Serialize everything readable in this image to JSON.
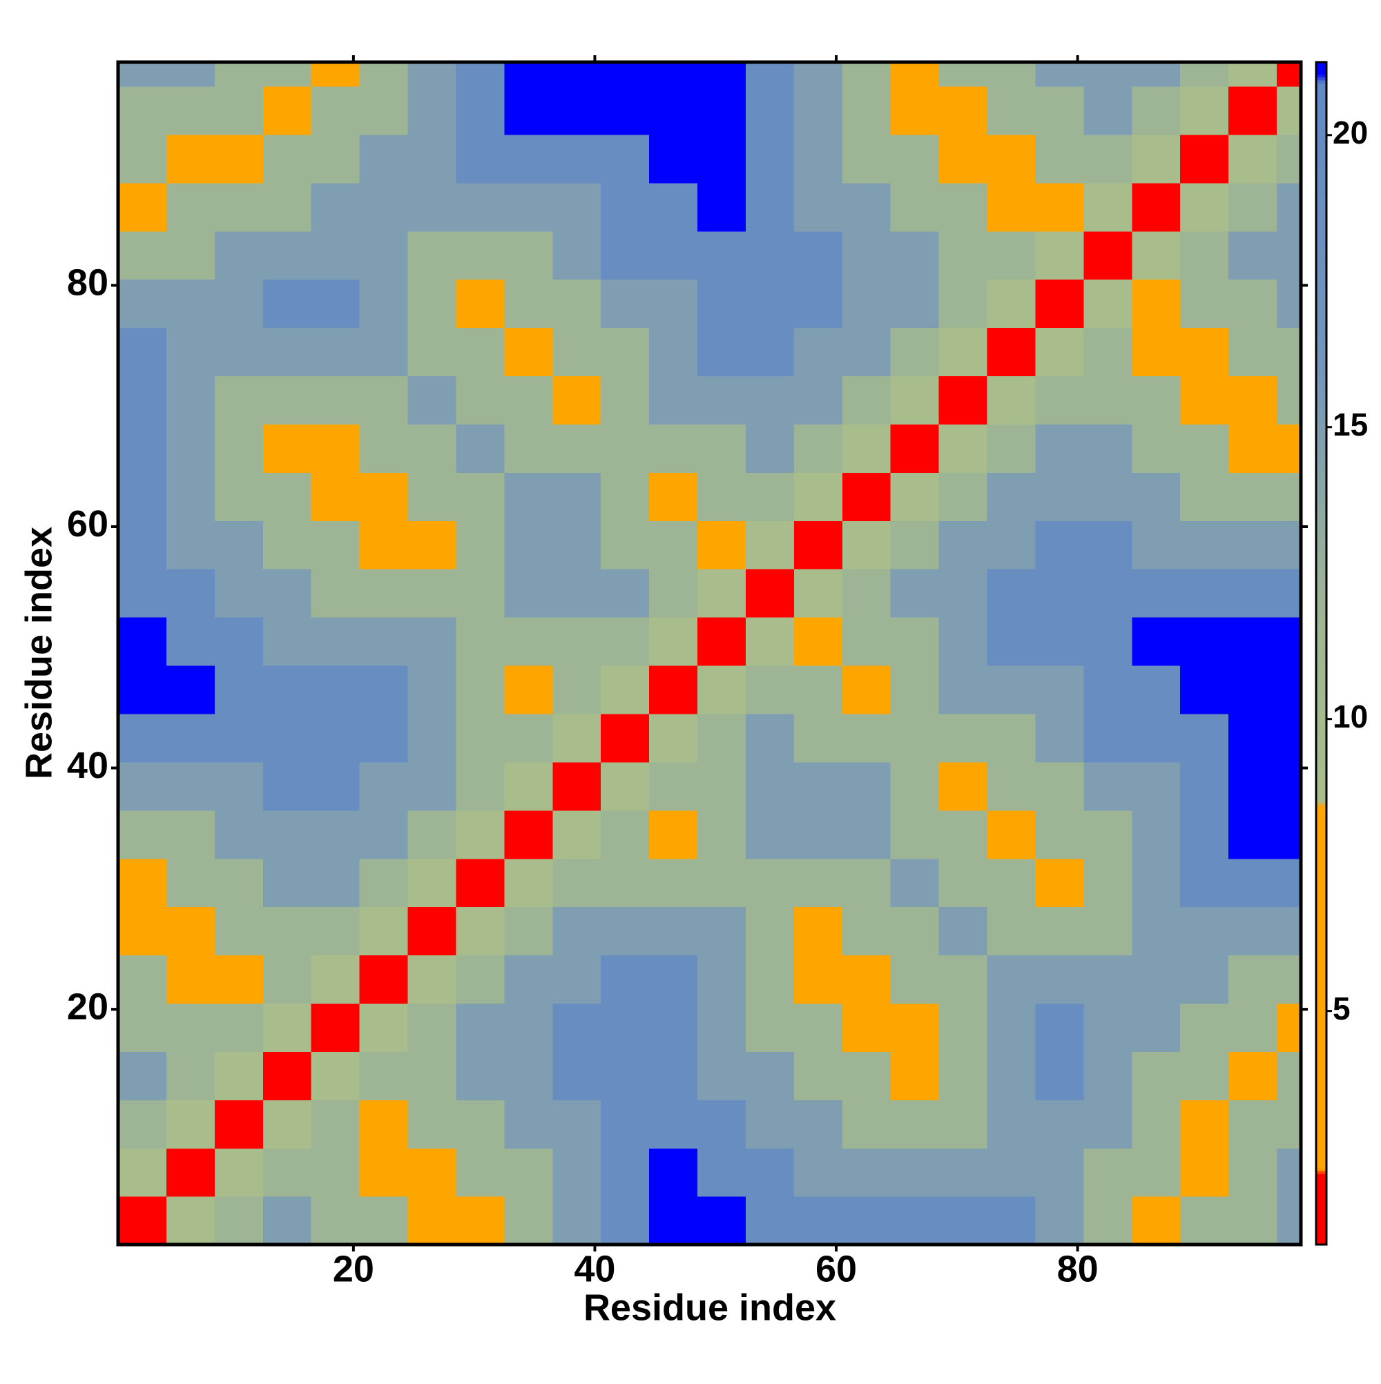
{
  "chart_data": {
    "type": "heatmap",
    "x_label": "Residue index",
    "y_label": "Residue index",
    "xlim": [
      0.5,
      98.5
    ],
    "ylim": [
      0.5,
      98.5
    ],
    "xticks": [
      20,
      40,
      60,
      80
    ],
    "yticks": [
      20,
      40,
      60,
      80
    ],
    "xbins": [
      0.5,
      4.5,
      8.5,
      12.5,
      16.5,
      20.5,
      24.5,
      28.5,
      32.5,
      36.5,
      40.5,
      44.5,
      48.5,
      52.5,
      56.5,
      60.5,
      64.5,
      68.5,
      72.5,
      76.5,
      80.5,
      84.5,
      88.5,
      92.5,
      96.5,
      98.5
    ],
    "ybins": [
      0.5,
      4.5,
      8.5,
      12.5,
      16.5,
      20.5,
      24.5,
      28.5,
      32.5,
      36.5,
      40.5,
      44.5,
      48.5,
      52.5,
      56.5,
      60.5,
      64.5,
      68.5,
      72.5,
      76.5,
      80.5,
      84.5,
      88.5,
      92.5,
      96.5,
      98.5
    ],
    "z": [
      [
        2,
        9,
        12,
        15,
        12,
        12,
        6,
        6,
        12,
        15,
        19,
        25,
        25,
        19,
        19,
        19,
        19,
        19,
        19,
        15,
        12,
        6,
        12,
        12,
        15
      ],
      [
        9,
        2,
        9,
        12,
        12,
        6,
        6,
        12,
        12,
        15,
        19,
        25,
        19,
        19,
        15,
        15,
        15,
        15,
        15,
        15,
        12,
        12,
        6,
        12,
        15
      ],
      [
        12,
        9,
        2,
        9,
        12,
        6,
        12,
        12,
        15,
        15,
        19,
        19,
        19,
        15,
        15,
        12,
        12,
        12,
        15,
        15,
        15,
        12,
        6,
        12,
        12
      ],
      [
        15,
        12,
        9,
        2,
        9,
        12,
        12,
        15,
        15,
        19,
        19,
        19,
        15,
        15,
        12,
        12,
        6,
        12,
        15,
        19,
        15,
        12,
        12,
        6,
        12
      ],
      [
        12,
        12,
        12,
        9,
        2,
        9,
        12,
        15,
        15,
        19,
        19,
        19,
        15,
        12,
        12,
        6,
        6,
        12,
        15,
        19,
        15,
        15,
        12,
        12,
        6
      ],
      [
        12,
        6,
        6,
        12,
        9,
        2,
        9,
        12,
        15,
        15,
        19,
        19,
        15,
        12,
        6,
        6,
        12,
        12,
        15,
        15,
        15,
        15,
        15,
        12,
        12
      ],
      [
        6,
        6,
        12,
        12,
        12,
        9,
        2,
        9,
        12,
        15,
        15,
        15,
        15,
        12,
        6,
        12,
        12,
        15,
        12,
        12,
        12,
        15,
        15,
        15,
        15
      ],
      [
        6,
        12,
        12,
        15,
        15,
        12,
        9,
        2,
        9,
        12,
        12,
        12,
        12,
        12,
        12,
        12,
        15,
        12,
        12,
        6,
        12,
        15,
        19,
        19,
        19
      ],
      [
        12,
        12,
        15,
        15,
        15,
        15,
        12,
        9,
        2,
        9,
        12,
        6,
        12,
        15,
        15,
        15,
        12,
        12,
        6,
        12,
        12,
        15,
        19,
        25,
        25
      ],
      [
        15,
        15,
        15,
        19,
        19,
        15,
        15,
        12,
        9,
        2,
        9,
        12,
        12,
        15,
        15,
        15,
        12,
        6,
        12,
        12,
        15,
        15,
        19,
        25,
        25
      ],
      [
        19,
        19,
        19,
        19,
        19,
        19,
        15,
        12,
        12,
        9,
        2,
        9,
        12,
        15,
        12,
        12,
        12,
        12,
        12,
        15,
        19,
        19,
        19,
        25,
        25
      ],
      [
        25,
        25,
        19,
        19,
        19,
        19,
        15,
        12,
        6,
        12,
        9,
        2,
        9,
        12,
        12,
        6,
        12,
        15,
        15,
        15,
        19,
        19,
        25,
        25,
        25
      ],
      [
        25,
        19,
        19,
        15,
        15,
        15,
        15,
        12,
        12,
        12,
        12,
        9,
        2,
        9,
        6,
        12,
        12,
        15,
        19,
        19,
        19,
        25,
        25,
        25,
        25
      ],
      [
        19,
        19,
        15,
        15,
        12,
        12,
        12,
        12,
        15,
        15,
        15,
        12,
        9,
        2,
        9,
        12,
        15,
        15,
        19,
        19,
        19,
        19,
        19,
        19,
        19
      ],
      [
        19,
        15,
        15,
        12,
        12,
        6,
        6,
        12,
        15,
        15,
        12,
        12,
        6,
        9,
        2,
        9,
        12,
        15,
        15,
        19,
        19,
        15,
        15,
        15,
        15
      ],
      [
        19,
        15,
        12,
        12,
        6,
        6,
        12,
        12,
        15,
        15,
        12,
        6,
        12,
        12,
        9,
        2,
        9,
        12,
        15,
        15,
        15,
        15,
        12,
        12,
        12
      ],
      [
        19,
        15,
        12,
        6,
        6,
        12,
        12,
        15,
        12,
        12,
        12,
        12,
        12,
        15,
        12,
        9,
        2,
        9,
        12,
        15,
        15,
        12,
        12,
        6,
        6
      ],
      [
        19,
        15,
        12,
        12,
        12,
        12,
        15,
        12,
        12,
        6,
        12,
        15,
        15,
        15,
        15,
        12,
        9,
        2,
        9,
        12,
        12,
        12,
        6,
        6,
        12
      ],
      [
        19,
        15,
        15,
        15,
        15,
        15,
        12,
        12,
        6,
        12,
        12,
        15,
        19,
        19,
        15,
        15,
        12,
        9,
        2,
        9,
        12,
        6,
        6,
        12,
        12
      ],
      [
        15,
        15,
        15,
        19,
        19,
        15,
        12,
        6,
        12,
        12,
        15,
        15,
        19,
        19,
        19,
        15,
        15,
        12,
        9,
        2,
        9,
        6,
        12,
        12,
        15
      ],
      [
        12,
        12,
        15,
        15,
        15,
        15,
        12,
        12,
        12,
        15,
        19,
        19,
        19,
        19,
        19,
        15,
        15,
        12,
        12,
        9,
        2,
        9,
        12,
        15,
        15
      ],
      [
        6,
        12,
        12,
        12,
        15,
        15,
        15,
        15,
        15,
        15,
        19,
        19,
        25,
        19,
        15,
        15,
        12,
        12,
        6,
        6,
        9,
        2,
        9,
        12,
        15
      ],
      [
        12,
        6,
        6,
        12,
        12,
        15,
        15,
        19,
        19,
        19,
        19,
        25,
        25,
        19,
        15,
        12,
        12,
        6,
        6,
        12,
        12,
        9,
        2,
        9,
        12
      ],
      [
        12,
        12,
        12,
        6,
        12,
        12,
        15,
        19,
        25,
        25,
        25,
        25,
        25,
        19,
        15,
        12,
        6,
        6,
        12,
        12,
        15,
        12,
        9,
        2,
        9
      ],
      [
        15,
        15,
        12,
        12,
        6,
        12,
        15,
        19,
        25,
        25,
        25,
        25,
        25,
        19,
        15,
        12,
        6,
        12,
        12,
        15,
        15,
        15,
        12,
        9,
        2
      ]
    ],
    "zlim": [
      1,
      21.25
    ],
    "zticks": [
      5,
      10,
      15,
      20
    ],
    "colorscale": [
      {
        "value": 1,
        "color": "#ff0000"
      },
      {
        "value": 2.2,
        "color": "#ff0000"
      },
      {
        "value": 2.3,
        "color": "#ffa500"
      },
      {
        "value": 8.5,
        "color": "#ffa500"
      },
      {
        "value": 8.6,
        "color": "#a9bd8b"
      },
      {
        "value": 12,
        "color": "#9db595"
      },
      {
        "value": 14,
        "color": "#8aa6a6"
      },
      {
        "value": 16,
        "color": "#7496bb"
      },
      {
        "value": 20.9,
        "color": "#6189c4"
      },
      {
        "value": 21.05,
        "color": "#0000ff"
      }
    ]
  }
}
